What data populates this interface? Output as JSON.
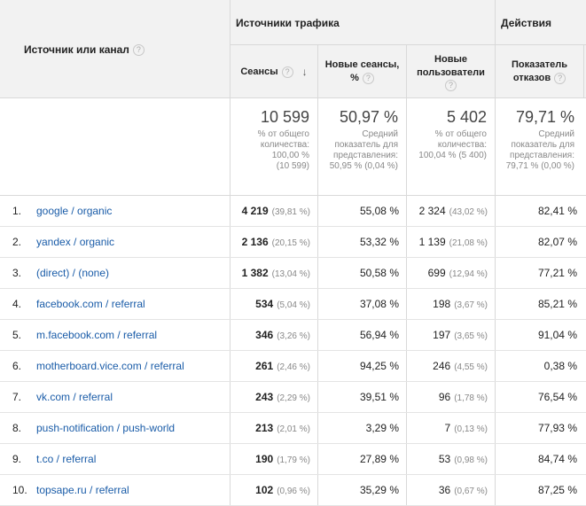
{
  "header": {
    "source_label": "Источник или канал",
    "group_traffic": "Источники трафика",
    "group_actions": "Действия",
    "col_sessions": "Сеансы",
    "col_new_sessions_line1": "Новые сеансы,",
    "col_new_sessions_line2": "%",
    "col_new_users_line1": "Новые",
    "col_new_users_line2": "пользователи",
    "col_bounce_line1": "Показатель",
    "col_bounce_line2": "отказов",
    "help_icon": "question-circle-icon",
    "sort_icon": "arrow-down-icon"
  },
  "totals": {
    "sessions": {
      "value": "10 599",
      "l1": "% от общего",
      "l2": "количества:",
      "l3": "100,00 %",
      "l4": "(10 599)"
    },
    "new_sessions": {
      "value": "50,97 %",
      "l1": "Средний",
      "l2": "показатель для",
      "l3": "представления:",
      "l4": "50,95 % (0,04 %)"
    },
    "new_users": {
      "value": "5 402",
      "l1": "% от общего",
      "l2": "количества:",
      "l3": "100,04 % (5 400)"
    },
    "bounce": {
      "value": "79,71 %",
      "l1": "Средний",
      "l2": "показатель для",
      "l3": "представления:",
      "l4": "79,71 % (0,00 %)"
    }
  },
  "rows": [
    {
      "n": "1.",
      "source": "google / organic",
      "sessions": "4 219",
      "sessions_pct": "(39,81 %)",
      "new_sessions": "55,08 %",
      "users": "2 324",
      "users_pct": "(43,02 %)",
      "bounce": "82,41 %"
    },
    {
      "n": "2.",
      "source": "yandex / organic",
      "sessions": "2 136",
      "sessions_pct": "(20,15 %)",
      "new_sessions": "53,32 %",
      "users": "1 139",
      "users_pct": "(21,08 %)",
      "bounce": "82,07 %"
    },
    {
      "n": "3.",
      "source": "(direct) / (none)",
      "sessions": "1 382",
      "sessions_pct": "(13,04 %)",
      "new_sessions": "50,58 %",
      "users": "699",
      "users_pct": "(12,94 %)",
      "bounce": "77,21 %"
    },
    {
      "n": "4.",
      "source": "facebook.com / referral",
      "sessions": "534",
      "sessions_pct": "(5,04 %)",
      "new_sessions": "37,08 %",
      "users": "198",
      "users_pct": "(3,67 %)",
      "bounce": "85,21 %"
    },
    {
      "n": "5.",
      "source": "m.facebook.com / referral",
      "sessions": "346",
      "sessions_pct": "(3,26 %)",
      "new_sessions": "56,94 %",
      "users": "197",
      "users_pct": "(3,65 %)",
      "bounce": "91,04 %"
    },
    {
      "n": "6.",
      "source": "motherboard.vice.com / referral",
      "sessions": "261",
      "sessions_pct": "(2,46 %)",
      "new_sessions": "94,25 %",
      "users": "246",
      "users_pct": "(4,55 %)",
      "bounce": "0,38 %"
    },
    {
      "n": "7.",
      "source": "vk.com / referral",
      "sessions": "243",
      "sessions_pct": "(2,29 %)",
      "new_sessions": "39,51 %",
      "users": "96",
      "users_pct": "(1,78 %)",
      "bounce": "76,54 %"
    },
    {
      "n": "8.",
      "source": "push-notification / push-world",
      "sessions": "213",
      "sessions_pct": "(2,01 %)",
      "new_sessions": "3,29 %",
      "users": "7",
      "users_pct": "(0,13 %)",
      "bounce": "77,93 %"
    },
    {
      "n": "9.",
      "source": "t.co / referral",
      "sessions": "190",
      "sessions_pct": "(1,79 %)",
      "new_sessions": "27,89 %",
      "users": "53",
      "users_pct": "(0,98 %)",
      "bounce": "84,74 %"
    },
    {
      "n": "10.",
      "source": "topsape.ru / referral",
      "sessions": "102",
      "sessions_pct": "(0,96 %)",
      "new_sessions": "35,29 %",
      "users": "36",
      "users_pct": "(0,67 %)",
      "bounce": "87,25 %"
    }
  ]
}
